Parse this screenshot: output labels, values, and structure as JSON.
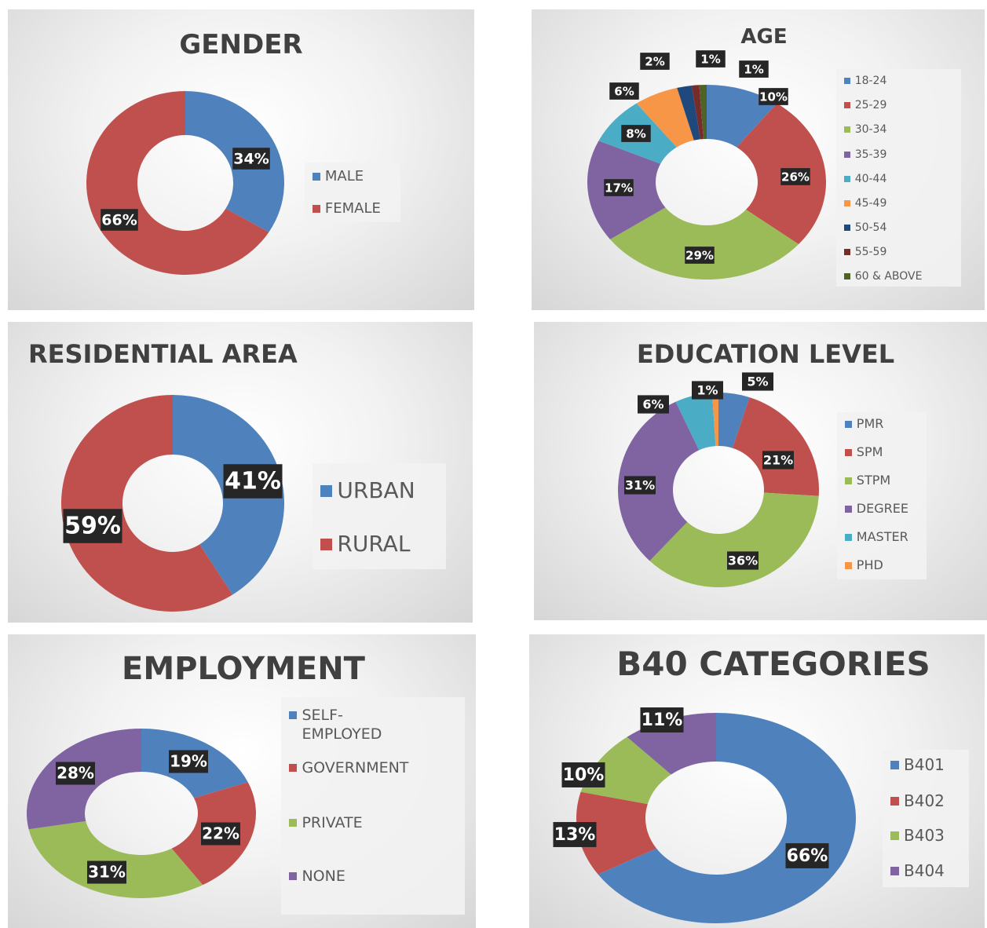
{
  "chart_data": [
    {
      "type": "donut",
      "title": "GENDER",
      "categories": [
        "MALE",
        "FEMALE"
      ],
      "values": [
        34,
        66
      ],
      "value_labels": [
        "34%",
        "66%"
      ],
      "colors": [
        "#4f81bd",
        "#c0504d"
      ]
    },
    {
      "type": "donut",
      "title": "AGE",
      "categories": [
        "18-24",
        "25-29",
        "30-34",
        "35-39",
        "40-44",
        "45-49",
        "50-54",
        "55-59",
        "60 & ABOVE"
      ],
      "values": [
        10,
        26,
        29,
        17,
        8,
        6,
        2,
        1,
        1
      ],
      "value_labels": [
        "10%",
        "26%",
        "29%",
        "17%",
        "8%",
        "6%",
        "2%",
        "1%",
        "1%"
      ],
      "colors": [
        "#4f81bd",
        "#c0504d",
        "#9bbb59",
        "#8064a2",
        "#4bacc6",
        "#f79646",
        "#1f497d",
        "#772c2a",
        "#4f6228"
      ]
    },
    {
      "type": "donut",
      "title": "RESIDENTIAL AREA",
      "categories": [
        "URBAN",
        "RURAL"
      ],
      "values": [
        41,
        59
      ],
      "value_labels": [
        "41%",
        "59%"
      ],
      "colors": [
        "#4f81bd",
        "#c0504d"
      ]
    },
    {
      "type": "donut",
      "title": "EDUCATION LEVEL",
      "categories": [
        "PMR",
        "SPM",
        "STPM",
        "DEGREE",
        "MASTER",
        "PHD"
      ],
      "values": [
        5,
        21,
        36,
        31,
        6,
        1
      ],
      "value_labels": [
        "5%",
        "21%",
        "36%",
        "31%",
        "6%",
        "1%"
      ],
      "colors": [
        "#4f81bd",
        "#c0504d",
        "#9bbb59",
        "#8064a2",
        "#4bacc6",
        "#f79646"
      ]
    },
    {
      "type": "donut",
      "title": "EMPLOYMENT",
      "categories": [
        "SELF-EMPLOYED",
        "GOVERNMENT",
        "PRIVATE",
        "NONE"
      ],
      "values": [
        19,
        22,
        31,
        28
      ],
      "value_labels": [
        "19%",
        "22%",
        "31%",
        "28%"
      ],
      "colors": [
        "#4f81bd",
        "#c0504d",
        "#9bbb59",
        "#8064a2"
      ]
    },
    {
      "type": "donut",
      "title": "B40 CATEGORIES",
      "categories": [
        "B401",
        "B402",
        "B403",
        "B404"
      ],
      "values": [
        66,
        13,
        10,
        11
      ],
      "value_labels": [
        "66%",
        "13%",
        "10%",
        "11%"
      ],
      "colors": [
        "#4f81bd",
        "#c0504d",
        "#9bbb59",
        "#8064a2"
      ]
    }
  ]
}
